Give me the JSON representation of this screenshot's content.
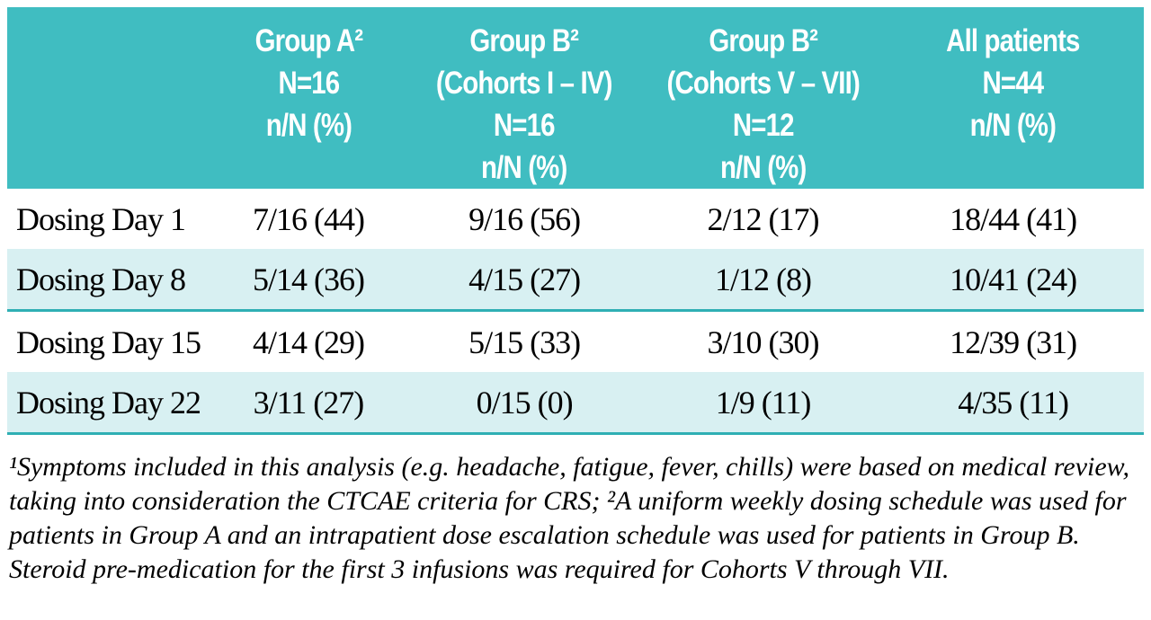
{
  "colors": {
    "header_bg": "#40BDC1",
    "stripe_bg": "#D8F0F2",
    "divider": "#2FAFB4",
    "header_text": "#FFFFFF",
    "body_text": "#000000"
  },
  "table": {
    "columns": [
      {
        "label": ""
      },
      {
        "label": "Group A²\nN=16\nn/N (%)"
      },
      {
        "label": "Group B²\n(Cohorts I – IV)\nN=16\nn/N (%)"
      },
      {
        "label": "Group B²\n(Cohorts V – VII)\nN=12\nn/N (%)"
      },
      {
        "label": "All patients\nN=44\nn/N (%)"
      }
    ],
    "rows": [
      {
        "label": "Dosing Day 1",
        "values": [
          "7/16 (44)",
          "9/16 (56)",
          "2/12 (17)",
          "18/44 (41)"
        ]
      },
      {
        "label": "Dosing Day 8",
        "values": [
          "5/14 (36)",
          "4/15 (27)",
          "1/12 (8)",
          "10/41 (24)"
        ]
      },
      {
        "label": "Dosing Day 15",
        "values": [
          "4/14 (29)",
          "5/15 (33)",
          "3/10 (30)",
          "12/39 (31)"
        ]
      },
      {
        "label": "Dosing Day 22",
        "values": [
          "3/11 (27)",
          "0/15 (0)",
          "1/9 (11)",
          "4/35 (11)"
        ]
      }
    ]
  },
  "footnote": "¹Symptoms included in this analysis (e.g. headache, fatigue, fever, chills) were based on medical review, taking into consideration the CTCAE criteria for CRS; ²A uniform weekly dosing schedule was used for patients in Group A and an intrapatient dose escalation schedule was used for patients in Group B. Steroid pre-medication for the first 3 infusions was required for Cohorts V through VII."
}
